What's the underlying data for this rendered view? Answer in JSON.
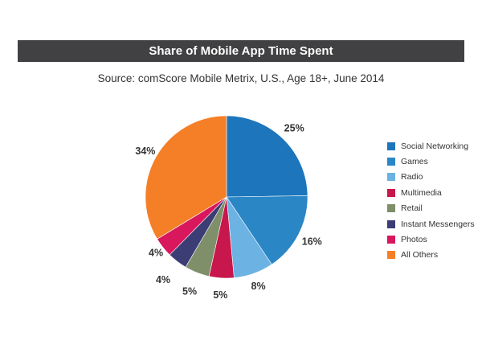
{
  "chart_data": {
    "type": "pie",
    "title": "Share of Mobile App Time Spent",
    "subtitle": "Source: comScore Mobile Metrix, U.S., Age 18+, June 2014",
    "legend_position": "right",
    "slices": [
      {
        "name": "Social Networking",
        "label": "25%",
        "value": 25,
        "color": "#1d75bc"
      },
      {
        "name": "Games",
        "label": "16%",
        "value": 16,
        "color": "#2b86c6"
      },
      {
        "name": "Radio",
        "label": "8%",
        "value": 8,
        "color": "#6cb2e2"
      },
      {
        "name": "Multimedia",
        "label": "5%",
        "value": 5,
        "color": "#c8174d"
      },
      {
        "name": "Retail",
        "label": "5%",
        "value": 5,
        "color": "#7e8f6a"
      },
      {
        "name": "Instant Messengers",
        "label": "4%",
        "value": 4,
        "color": "#3d3d75"
      },
      {
        "name": "Photos",
        "label": "4%",
        "value": 4,
        "color": "#d8175c"
      },
      {
        "name": "All Others",
        "label": "34%",
        "value": 34,
        "color": "#f57f26"
      }
    ]
  }
}
